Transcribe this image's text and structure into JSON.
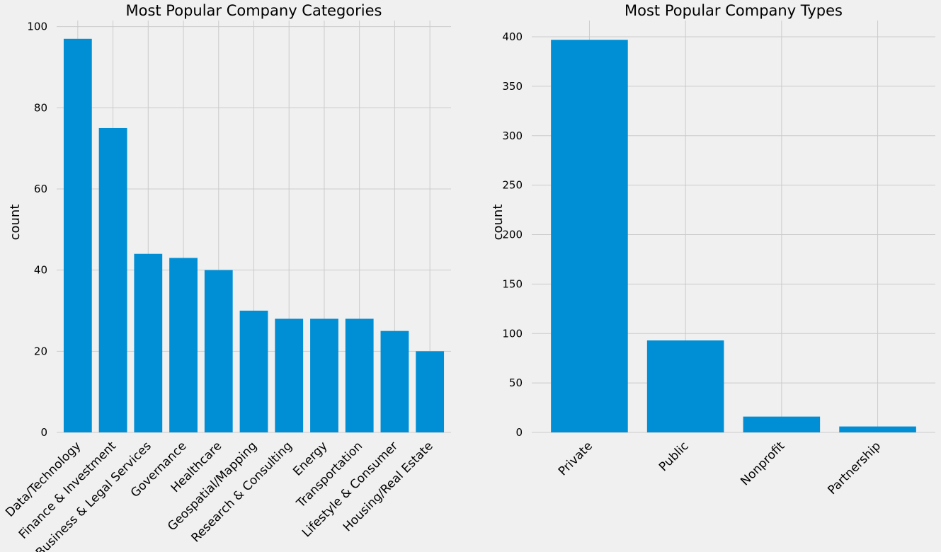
{
  "chart_data": [
    {
      "type": "bar",
      "title": "Most Popular Company Categories",
      "xlabel": "",
      "ylabel": "count",
      "categories": [
        "Data/Technology",
        "Finance & Investment",
        "Business & Legal Services",
        "Governance",
        "Healthcare",
        "Geospatial/Mapping",
        "Research & Consulting",
        "Energy",
        "Transportation",
        "Lifestyle & Consumer",
        "Housing/Real Estate"
      ],
      "values": [
        97,
        75,
        44,
        43,
        40,
        30,
        28,
        28,
        28,
        25,
        20
      ],
      "ylim": [
        0,
        101.5
      ],
      "yticks": [
        0,
        20,
        40,
        60,
        80,
        100
      ],
      "grid": true,
      "color": "#008fd5"
    },
    {
      "type": "bar",
      "title": "Most Popular Company Types",
      "xlabel": "",
      "ylabel": "count",
      "categories": [
        "Private",
        "Public",
        "Nonprofit",
        "Partnership"
      ],
      "values": [
        397,
        93,
        16,
        6
      ],
      "ylim": [
        0,
        416.5
      ],
      "yticks": [
        0,
        50,
        100,
        150,
        200,
        250,
        300,
        350,
        400
      ],
      "grid": true,
      "color": "#008fd5"
    }
  ]
}
